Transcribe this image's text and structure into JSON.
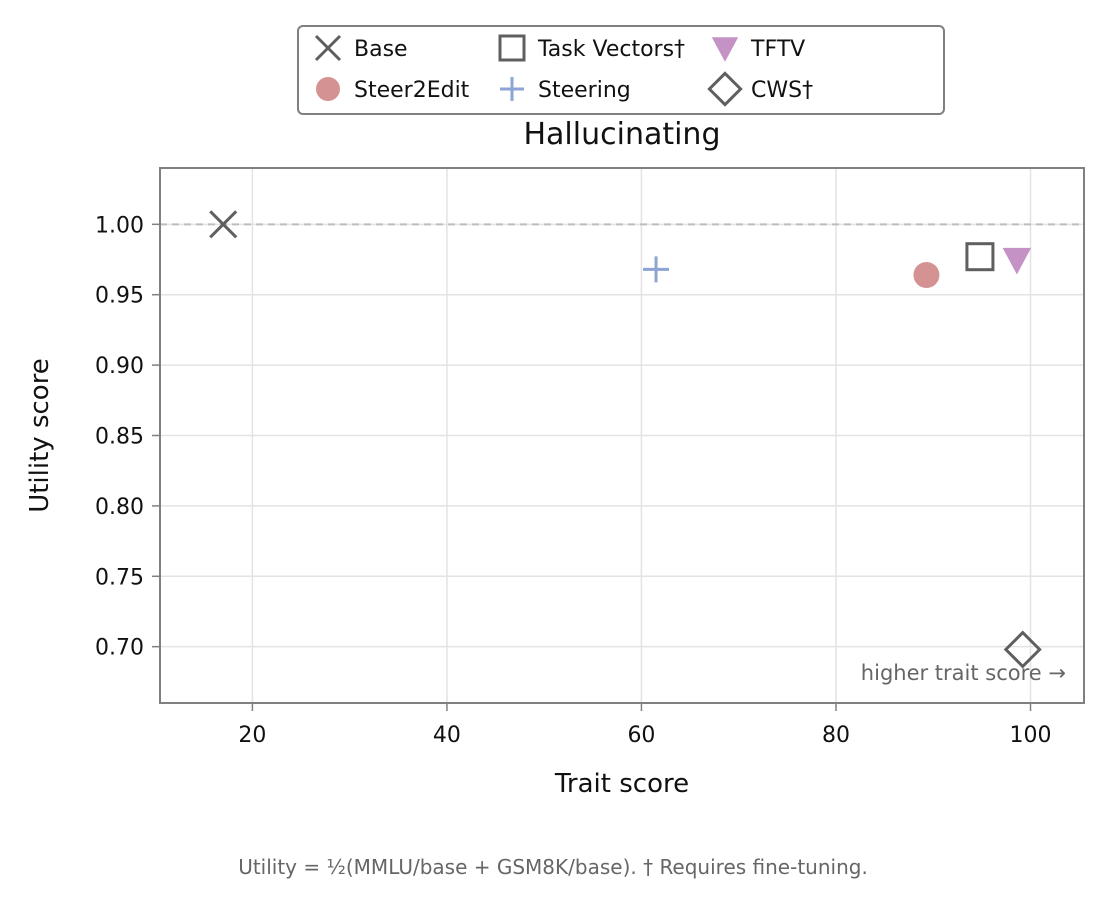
{
  "chart_data": {
    "type": "scatter",
    "title": "Hallucinating",
    "xlabel": "Trait score",
    "ylabel": "Utility score",
    "xlim": [
      10.5,
      105.5
    ],
    "ylim": [
      0.66,
      1.04
    ],
    "xticks": [
      20,
      40,
      60,
      80,
      100
    ],
    "xtick_labels": [
      "20",
      "40",
      "60",
      "80",
      "100"
    ],
    "yticks": [
      0.7,
      0.75,
      0.8,
      0.85,
      0.9,
      0.95,
      1.0
    ],
    "ytick_labels": [
      "0.70",
      "0.75",
      "0.80",
      "0.85",
      "0.90",
      "0.95",
      "1.00"
    ],
    "grid": true,
    "reference_line_y": 1.0,
    "legend_position": "top-center, outside plot",
    "series": [
      {
        "name": "Base",
        "marker": "x-icon",
        "color": "#5f5f5f",
        "x": 17.0,
        "y": 1.0
      },
      {
        "name": "Steering",
        "marker": "plus-icon",
        "color": "#8da4d6",
        "x": 61.5,
        "y": 0.968
      },
      {
        "name": "Steer2Edit",
        "marker": "circle-icon",
        "color": "#d49392",
        "x": 89.3,
        "y": 0.964
      },
      {
        "name": "TFTV",
        "marker": "triangle-down-icon",
        "color": "#c592c6",
        "x": 98.6,
        "y": 0.975
      },
      {
        "name": "Task Vectors†",
        "marker": "square-icon",
        "color": "#5f5f5f",
        "x": 94.8,
        "y": 0.977
      },
      {
        "name": "CWS†",
        "marker": "diamond-icon",
        "color": "#5f5f5f",
        "x": 99.2,
        "y": 0.698
      }
    ],
    "legend_order": [
      0,
      2,
      4,
      1,
      3,
      5
    ],
    "annotation": "higher trait score →",
    "footnote": "Utility = ½(MMLU/base + GSM8K/base).  † Requires fine-tuning."
  }
}
